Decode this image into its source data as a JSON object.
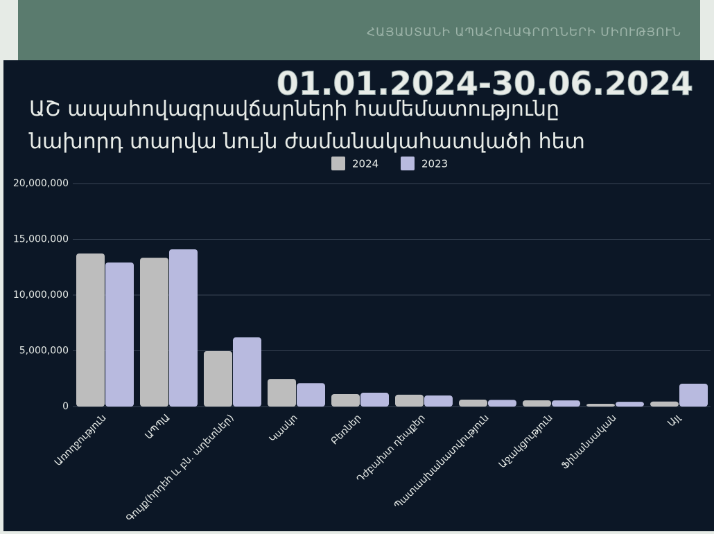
{
  "header": {
    "organization": "ՀԱՅԱՍՏԱՆԻ ԱՊԱՀՈՎԱԳՐՈՂՆԵՐԻ ՄԻՈՒԹՅՈՒՆ",
    "period": "01.01.2024-30.06.2024"
  },
  "chart_data": {
    "type": "bar",
    "title": "ԱՇ ապահովագրավճարների համեմատությունը նախորդ տարվա նույն ժամանակահատվածի հետ",
    "categories": [
      "Առողջություն",
      "ԱՊՊԱ",
      "Գույք(հրդեհ և բն. աղետներ)",
      "Կասկո",
      "Բեռներ",
      "Դժբախտ դեպքեր",
      "Պատասխանատվություն",
      "Աջակցություն",
      "Ֆինանսական",
      "Այլ"
    ],
    "series": [
      {
        "name": "2024",
        "color": "#bdbdbd",
        "values": [
          13730000,
          13350000,
          4970000,
          2480000,
          1120000,
          1060000,
          620000,
          560000,
          250000,
          450000
        ]
      },
      {
        "name": "2023",
        "color": "#b8badf",
        "values": [
          12920000,
          14100000,
          6200000,
          2100000,
          1240000,
          990000,
          600000,
          550000,
          430000,
          2050000
        ]
      }
    ],
    "ylim": [
      0,
      20000000
    ],
    "yticks": [
      0,
      {
        "value": 5000000,
        "label": "5,000,000"
      },
      {
        "value": 10000000,
        "label": "10,000,000"
      },
      {
        "value": 15000000,
        "label": "15,000,000"
      },
      {
        "value": 20000000,
        "label": "20,000,000"
      }
    ],
    "grid": true,
    "legend": "top"
  }
}
